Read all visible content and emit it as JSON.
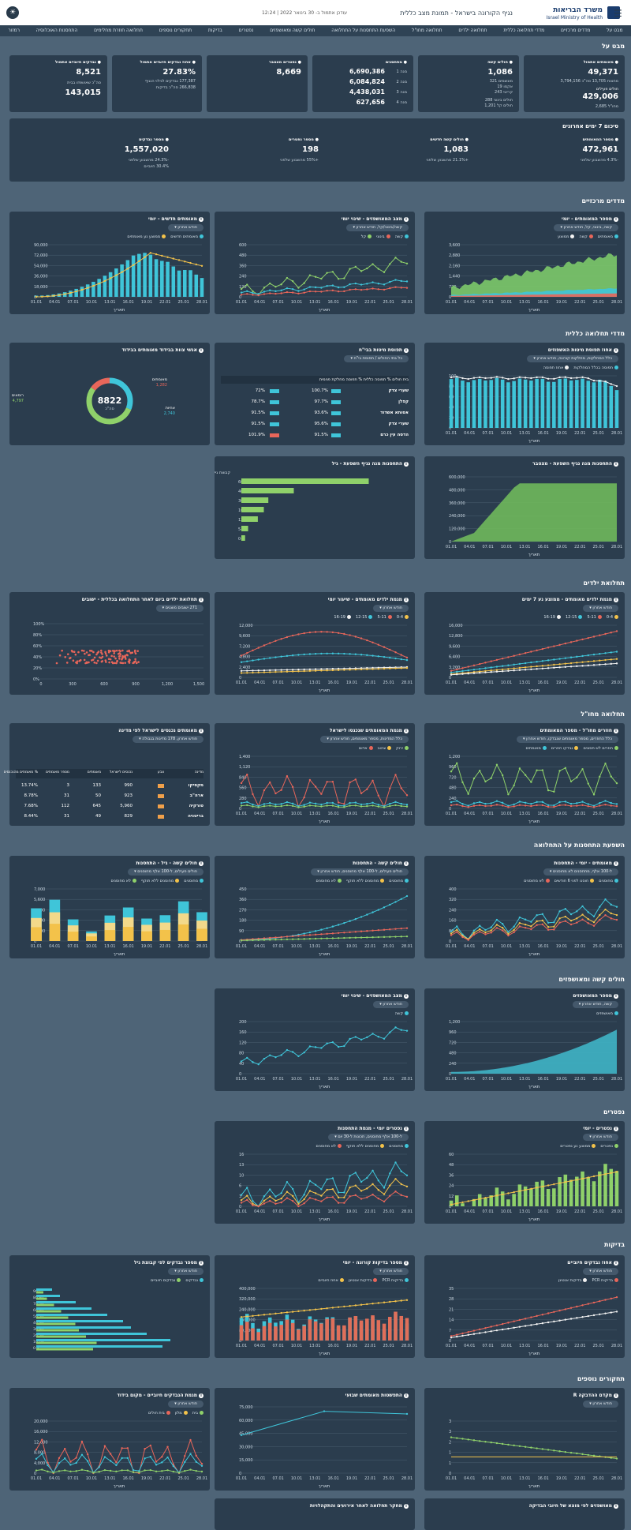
{
  "header": {
    "title": "נגיף הקורונה בישראל - תמונת מצב כללית",
    "updated": "עודכן אתמול ב- 30 בינואר 2022 | 12:24",
    "brand_he": "משרד הבריאות",
    "brand_en": "Israel Ministry of Health",
    "menu_icon": "hamburger-icon",
    "mode_icon": "sun-icon"
  },
  "nav": [
    "מבט על",
    "מדדים מרכזיים",
    "מדדי תחלואה כללית",
    "תחלואה ילדים",
    "תחלואה מחו\"ל",
    "השפעת התחסנות על התחלואה",
    "חולים קשה ומאושפזים",
    "נפטרים",
    "בדיקות",
    "תחקורים נוספים",
    "תחלואה חוזרת מחלימים",
    "התחסנות האוכלוסיה",
    "רמזור"
  ],
  "sections": {
    "overview": "מבט על",
    "summary7": "סיכום 7 ימים אחרונים",
    "key": "מדדים מרכזיים",
    "general": "מדדי תחלואה כללית",
    "children": "תחלואת ילדים",
    "abroad": "תחלואה מחו\"ל",
    "vaccine": "השפעת התחסנות על התחלואה",
    "severe": "חולים קשה ומאושפזים",
    "deaths": "נפטרים",
    "tests": "בדיקות",
    "research": "תחקורים נוספים"
  },
  "overview": {
    "verified": {
      "title": "מאומתים אתמול",
      "value": "49,371",
      "sub1_label": "מחצות",
      "sub1_value": "13,705",
      "sub2_label": "סה\"כ",
      "sub2_value": "3,794,156",
      "active_label": "חולים פעילים",
      "active_value": "429,006",
      "abroad_label": "מחו\"ל",
      "abroad_value": "2,685"
    },
    "severe": {
      "title": "חולים קשה",
      "value": "1,086",
      "rows": [
        {
          "label": "מונשמים",
          "value": "321"
        },
        {
          "label": "אקמו",
          "value": "19"
        },
        {
          "label": "קריטי",
          "value": "243"
        }
      ],
      "rows2": [
        {
          "label": "חולים בינוני",
          "value": "288"
        },
        {
          "label": "חולים קל",
          "value": "1,201"
        }
      ]
    },
    "vaccinated": {
      "title": "מתחסנים",
      "rows": [
        {
          "label": "מנה 1",
          "value": "6,690,386"
        },
        {
          "label": "מנה 2",
          "value": "6,084,824"
        },
        {
          "label": "מנה 3",
          "value": "4,438,031"
        },
        {
          "label": "מנה 4",
          "value": "627,656"
        }
      ]
    },
    "deaths": {
      "title": "נפטרים מצטבר",
      "value": "8,669"
    },
    "positivity": {
      "title": "אחוז נבדקים חיוביים אתמול",
      "value": "27.83%",
      "line1": "177,387 נבדקים לגילוי הנגיף",
      "line2": "266,838 סה\"כ בדיקות"
    },
    "tested": {
      "title": "נבדקים חיוביים אתמול",
      "value": "8,521",
      "sub_title": "סה\"כ שאושפזו בבית",
      "sub_value": "143,015"
    }
  },
  "summary": [
    {
      "title": "מספר המאומתים",
      "value": "472,961",
      "note": "-4.3% מהשבוע שלפני"
    },
    {
      "title": "חולים קשה חדשים",
      "value": "1,083",
      "note": "+21.1% מהשבוע שלפני"
    },
    {
      "title": "מספר נפטרים",
      "value": "198",
      "note": "+55% מהשבוע שלפני"
    },
    {
      "title": "מספר נבדקים",
      "value": "1,557,020",
      "note": "-24.3% מהשבוע שלפני",
      "note2": "30.4% חיוביים"
    }
  ],
  "cards": {
    "k1": {
      "title": "מספר המאומתים - יומי",
      "select": "קשה, בינוני, קל, חודש אחרון",
      "legend": [
        "מאומתים",
        "קשה",
        "ממוצע"
      ]
    },
    "k2": {
      "title": "מצב המאושפזים - שינוי יומי",
      "select": "קשה/בינוני/קל, חודש אחרון",
      "legend": [
        "קשה",
        "בינוני",
        "קל"
      ]
    },
    "k3": {
      "title": "מאומתים חדשים - יומי",
      "select": "חודש אחרון",
      "legend": [
        "מאומתים חדשים",
        "ממוצע נע מאומתים"
      ]
    },
    "g1": {
      "title": "אחוז תפוסת מיטות האשפוזים",
      "select": "כלל המחלקות, מחלקות קורונה, חודש אחרון",
      "legend": [
        "תפוסה בכלל המחלקות",
        "אחוז תפוסה"
      ]
    },
    "g2": {
      "title": "תפוסת מיטות בבי\"ח",
      "select": "כל בתי החולים / תפוסת בי\"ח",
      "legend": [
        "עודכן לפני",
        "23.01.22"
      ]
    },
    "g3": {
      "title": "אנשי צוות בבידוד מאומתים בבידוד",
      "center": "8822",
      "center_label": "סה\"כ",
      "left_label": "מאומתים",
      "left_value": "1,282",
      "right_label": "אחיות",
      "right_value": "2,740",
      "bottom_label": "רופאים",
      "bottom_value": "4,797"
    },
    "g4": {
      "title": "התחסנות מנה נגיף השפעת - מצטבר"
    },
    "g5": {
      "title": "התחסנות מנה נגיף השפעת - גיל",
      "ylabel": "קבוצת גיל"
    },
    "c1": {
      "title": "מגמת ילדים מאומתים - ממוצע נע 7 ימים",
      "select": "חודש אחרון",
      "legend": [
        "0-4",
        "5-11",
        "12-15",
        "16-19"
      ]
    },
    "c2": {
      "title": "מגמת ילדים מאומתים - שיעור יומי",
      "select": "חודש אחרון",
      "legend": [
        "0-4",
        "5-11",
        "12-15",
        "16-19"
      ]
    },
    "c3": {
      "title": "תחלואת ילדים ביום לאחר התחלואה בכללית - ישובים",
      "select": "271 ישובים מוצגים"
    },
    "a1": {
      "title": "חוזרים מחו\"ל - מספר המאומתים",
      "select": "כלל החוזרים, מספר מאומתים שנבדקו, חודש אחרון",
      "legend": [
        "חוזרים לא-חסונים",
        "נבדקו חוזרים",
        "מאומתים"
      ]
    },
    "a2": {
      "title": "מגמת המאומתים שנכנסו לישראל",
      "select": "כלל המדינות, מספר מאומתים, חודש אחרון",
      "legend": [
        "ירוק",
        "צהוב",
        "אדום"
      ]
    },
    "a3": {
      "title": "מאומתים נכנסים לישראל לפי מדינה",
      "select": "חודש אחרון, 178 מדינות בגבולה",
      "headers": [
        "מדינה",
        "צבע",
        "נכנסים לישראל",
        "מאומתים",
        "מספר מאומתים",
        "% מאומתים מהנכנסים"
      ],
      "rows": [
        [
          "בריטניה",
          "",
          "829",
          "49",
          "31",
          "8.44%"
        ],
        [
          "טורקיה",
          "",
          "5,960",
          "645",
          "112",
          "7.68%"
        ],
        [
          "ארה\"ב",
          "",
          "923",
          "50",
          "31",
          "8.78%"
        ],
        [
          "מקסיקו",
          "",
          "990",
          "133",
          "3",
          "13.74%"
        ]
      ]
    },
    "v1": {
      "title": "מאומתים - יומי - התחסנות",
      "select": "ל-100 אלף, מתחסנים לא מחוסנים",
      "legend": [
        "מחוסנים",
        "חוסנו לפני 6 חודשים",
        "לא מחוסנים"
      ]
    },
    "v2": {
      "title": "חולים קשה - התחסנות",
      "select": "חולים פעילים, ל-100 אלף מחוסנים, חודש אחרון",
      "legend": [
        "מחוסנים",
        "מחוסנים ללא תוקף",
        "לא מחוסנים"
      ]
    },
    "v3": {
      "title": "חולים קשה - גיל - התחסנות",
      "select": "חולים פעילים, ל-100 אלף מחוסנים",
      "legend": [
        "מחוסנים",
        "מחוסנים ללא תוקף",
        "לא מחוסנים"
      ]
    },
    "s1": {
      "title": "מספר המאושפזים",
      "select": "קשה, חודש אחרון",
      "legend": [
        "מאושפזים"
      ]
    },
    "s2": {
      "title": "מצב המאושפזים - שינוי יומי",
      "select": "חודש אחרון",
      "legend": [
        "קשה"
      ]
    },
    "d1": {
      "title": "נפטרים - יומי",
      "select": "חודש אחרון",
      "legend": [
        "נפטרים",
        "ממוצע נע נפטרים"
      ]
    },
    "d2": {
      "title": "נפטרים יומי - מגמת התחסנות",
      "select": "ל-100 אלף מחוסנים, תכונות ל-30 יום",
      "legend": [
        "מחוסנים",
        "מחוסנים ללא תוקף",
        "לא מחוסנים"
      ]
    },
    "t1": {
      "title": "אחוז נבדקים חיוביים",
      "select": "חודש אחרון",
      "legend": [
        "בדיקות PCR",
        "בדיקות אנטיגן"
      ]
    },
    "t2": {
      "title": "מספר בדיקות קורונה - יומי",
      "select": "חודש אחרון",
      "legend": [
        "בדיקות PCR",
        "בדיקות אנטיגן",
        "אחוז חיוביים"
      ]
    },
    "t3": {
      "title": "מספר נבדקים לפי קבוצת גיל",
      "select": "חודש אחרון",
      "legend": [
        "נבדקים",
        "נבדקים חיוביים"
      ]
    },
    "r1": {
      "title": "מקדם ההדבקה R",
      "select": "חודש אחרון"
    },
    "r2": {
      "title": "התפשטות מאומתים שבועי"
    },
    "r3": {
      "title": "מגמת הנבדקים חיוביים - מקום בידוד",
      "select": "חודש אחרון",
      "legend": [
        "בית",
        "מלון",
        "בית חולים"
      ]
    },
    "b1": {
      "title": "מאושפזים לפי מוצא של חיובי הבדיקה"
    },
    "b2": {
      "title": "מחקר תחלואה לאחר אירועים והתקהלויות"
    }
  },
  "axis": {
    "dates": [
      "01.01",
      "04.01",
      "07.01",
      "10.01",
      "13.01",
      "16.01",
      "19.01",
      "22.01",
      "25.01",
      "28.01"
    ],
    "xlabel": "תאריך"
  },
  "chart_data": [
    {
      "type": "area",
      "title": "מספר המאומתים - יומי",
      "x": [
        "01.01",
        "04.01",
        "07.01",
        "10.01",
        "13.01",
        "16.01",
        "19.01",
        "22.01",
        "25.01",
        "28.01"
      ],
      "series": [
        {
          "name": "מאומתים",
          "values": [
            900,
            1200,
            1500,
            1800,
            2100,
            2400,
            2600,
            2900,
            3000,
            2800
          ]
        }
      ],
      "ylim": [
        0,
        3600
      ]
    },
    {
      "type": "line",
      "title": "מצב המאושפזים - שינוי יומי",
      "x": [
        "01.01",
        "04.01",
        "07.01",
        "10.01",
        "13.01",
        "16.01",
        "19.01",
        "22.01",
        "25.01",
        "28.01"
      ],
      "series": [
        {
          "name": "קשה",
          "values": [
            60,
            120,
            220,
            280,
            330,
            380,
            360,
            420,
            400,
            180
          ]
        },
        {
          "name": "בינוני",
          "values": [
            40,
            60,
            80,
            120,
            160,
            200,
            230,
            260,
            280,
            150
          ]
        },
        {
          "name": "קל",
          "values": [
            20,
            30,
            40,
            60,
            80,
            100,
            110,
            130,
            140,
            90
          ]
        }
      ],
      "ylim": [
        0,
        600
      ]
    },
    {
      "type": "bar",
      "title": "מאומתים חדשים - יומי",
      "x": [
        "01.01",
        "04.01",
        "07.01",
        "10.01",
        "13.01",
        "16.01",
        "19.01",
        "22.01",
        "25.01",
        "28.01"
      ],
      "series": [
        {
          "name": "מאומתים חדשים",
          "values": [
            4000,
            9000,
            18000,
            30000,
            50000,
            65000,
            78000,
            80000,
            70000,
            55000
          ]
        }
      ],
      "ylim": [
        0,
        90000
      ]
    }
  ]
}
